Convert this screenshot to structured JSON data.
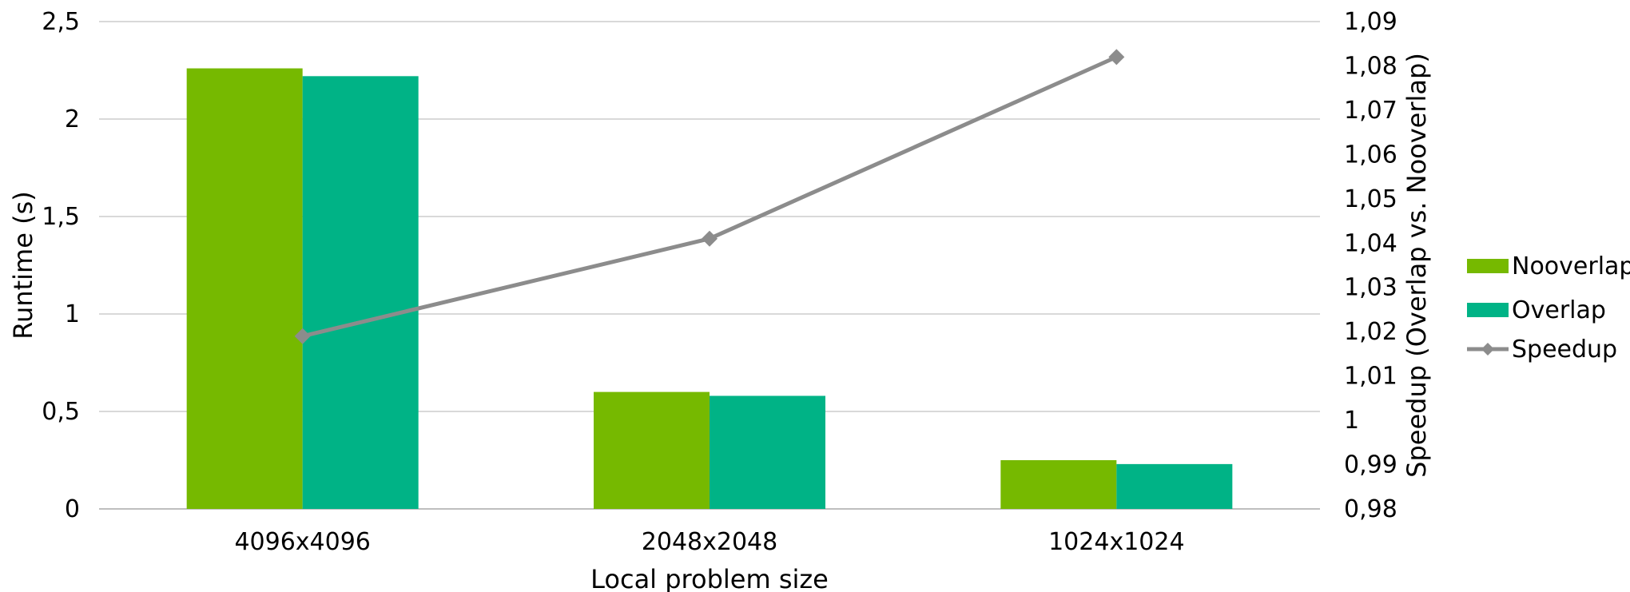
{
  "chart_data": {
    "type": "bar",
    "title": "",
    "xlabel": "Local problem size",
    "ylabel": "Runtime (s)",
    "y2label": "Speedup (Overlap vs. Nooverlap)",
    "categories": [
      "4096x4096",
      "2048x2048",
      "1024x1024"
    ],
    "ylim": [
      0,
      2.5
    ],
    "y2lim": [
      0.98,
      1.09
    ],
    "yticks": [
      "0",
      "0,5",
      "1",
      "1,5",
      "2",
      "2,5"
    ],
    "y2ticks": [
      "0,98",
      "0,99",
      "1",
      "1,01",
      "1,02",
      "1,03",
      "1,04",
      "1,05",
      "1,06",
      "1,07",
      "1,08",
      "1,09"
    ],
    "grid": true,
    "legend_position": "right",
    "series": [
      {
        "name": "Nooverlap",
        "type": "bar",
        "axis": "left",
        "color": "#76b900",
        "values": [
          2.26,
          0.6,
          0.25
        ]
      },
      {
        "name": "Overlap",
        "type": "bar",
        "axis": "left",
        "color": "#00b386",
        "values": [
          2.22,
          0.58,
          0.23
        ]
      },
      {
        "name": "Speedup",
        "type": "line",
        "axis": "right",
        "color": "#8c8c8c",
        "marker": "diamond",
        "values": [
          1.019,
          1.041,
          1.082
        ]
      }
    ]
  }
}
